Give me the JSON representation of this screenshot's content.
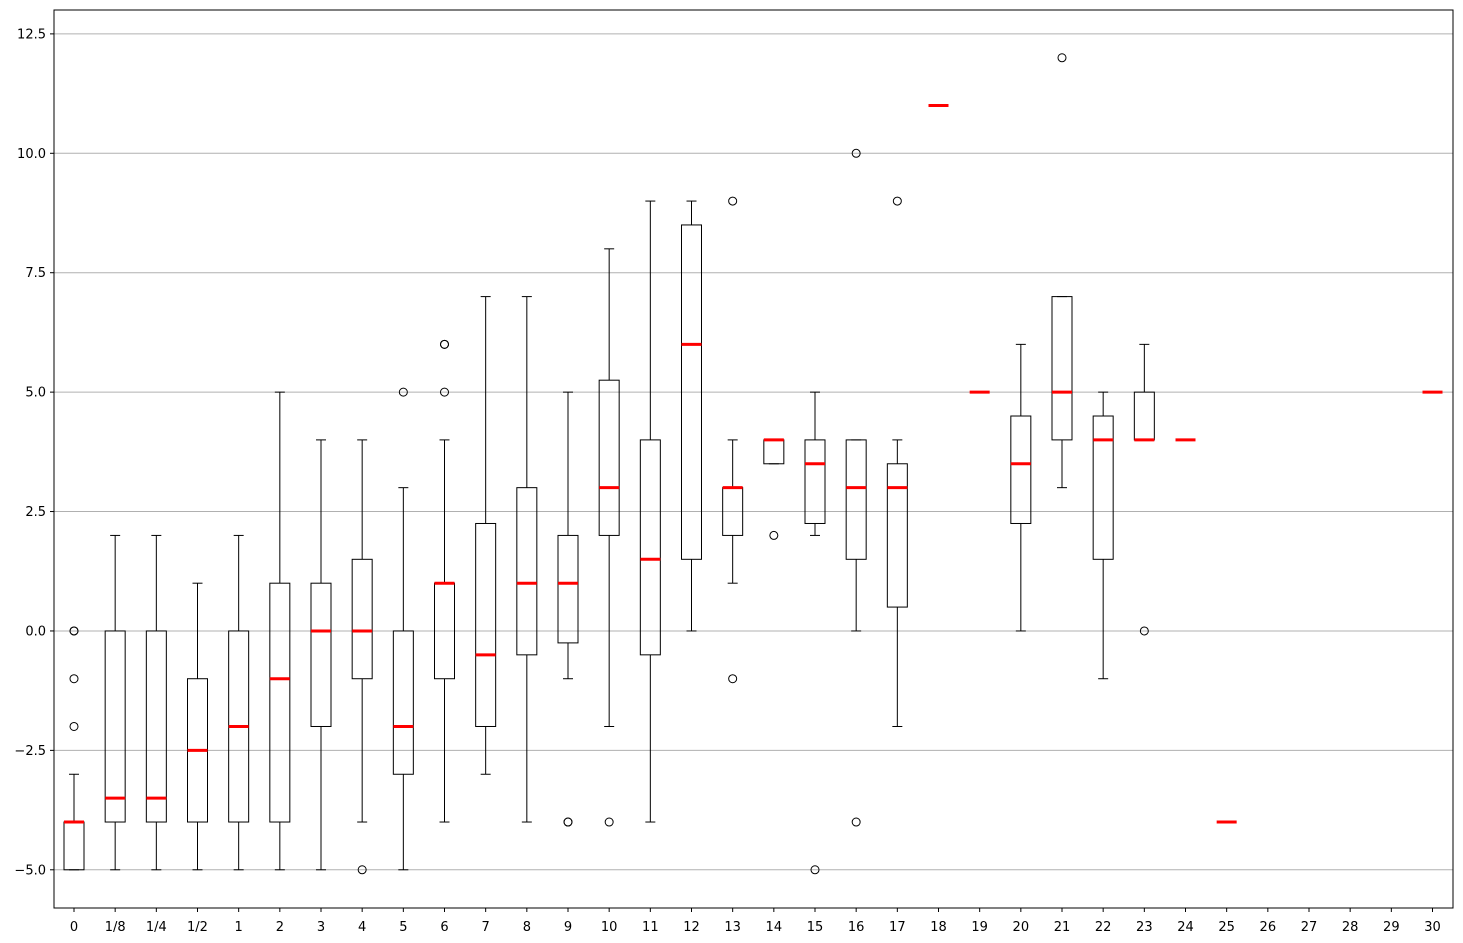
{
  "chart_data": {
    "type": "boxplot",
    "title": "",
    "xlabel": "",
    "ylabel": "",
    "ylim": [
      -5.8,
      13.0
    ],
    "grid": "horizontal",
    "colors": {
      "box": "#000000",
      "median": "#ff0000",
      "grid": "#b0b0b0",
      "flier_fill": "none"
    },
    "categories": [
      "0",
      "1/8",
      "1/4",
      "1/2",
      "1",
      "2",
      "3",
      "4",
      "5",
      "6",
      "7",
      "8",
      "9",
      "10",
      "11",
      "12",
      "13",
      "14",
      "15",
      "16",
      "17",
      "18",
      "19",
      "20",
      "21",
      "22",
      "23",
      "24",
      "25",
      "26",
      "27",
      "28",
      "29",
      "30"
    ],
    "yticks": [
      "-5.0",
      "-2.5",
      "0.0",
      "2.5",
      "5.0",
      "7.5",
      "10.0",
      "12.5"
    ],
    "ytick_values": [
      -5,
      -2.5,
      0,
      2.5,
      5,
      7.5,
      10,
      12.5
    ],
    "boxes": [
      {
        "label": "0",
        "whislo": -5,
        "q1": -5,
        "med": -4,
        "q3": -4,
        "whishi": -3,
        "fliers": [
          0,
          0,
          -1,
          -2
        ]
      },
      {
        "label": "1/8",
        "whislo": -5,
        "q1": -4,
        "med": -3.5,
        "q3": 0,
        "whishi": 2,
        "fliers": []
      },
      {
        "label": "1/4",
        "whislo": -5,
        "q1": -4,
        "med": -3.5,
        "q3": 0,
        "whishi": 2,
        "fliers": []
      },
      {
        "label": "1/2",
        "whislo": -5,
        "q1": -4,
        "med": -2.5,
        "q3": -1,
        "whishi": 1,
        "fliers": []
      },
      {
        "label": "1",
        "whislo": -5,
        "q1": -4,
        "med": -2,
        "q3": 0,
        "whishi": 2,
        "fliers": []
      },
      {
        "label": "2",
        "whislo": -5,
        "q1": -4,
        "med": -1,
        "q3": 1,
        "whishi": 5,
        "fliers": []
      },
      {
        "label": "3",
        "whislo": -5,
        "q1": -2,
        "med": 0,
        "q3": 1,
        "whishi": 4,
        "fliers": []
      },
      {
        "label": "4",
        "whislo": -4,
        "q1": -1,
        "med": 0,
        "q3": 1.5,
        "whishi": 4,
        "fliers": [
          -5
        ]
      },
      {
        "label": "5",
        "whislo": -5,
        "q1": -3,
        "med": -2,
        "q3": 0,
        "whishi": 3,
        "fliers": [
          5
        ]
      },
      {
        "label": "6",
        "whislo": -4,
        "q1": -1,
        "med": 1,
        "q3": 1,
        "whishi": 4,
        "fliers": [
          5,
          6,
          6
        ]
      },
      {
        "label": "7",
        "whislo": -3,
        "q1": -2,
        "med": -0.5,
        "q3": 2.25,
        "whishi": 7,
        "fliers": []
      },
      {
        "label": "8",
        "whislo": -4,
        "q1": -0.5,
        "med": 1,
        "q3": 3,
        "whishi": 7,
        "fliers": []
      },
      {
        "label": "9",
        "whislo": -1,
        "q1": -0.25,
        "med": 1,
        "q3": 2,
        "whishi": 5,
        "fliers": [
          -4,
          -4
        ]
      },
      {
        "label": "10",
        "whislo": -2,
        "q1": 2,
        "med": 3,
        "q3": 5.25,
        "whishi": 8,
        "fliers": [
          -4
        ]
      },
      {
        "label": "11",
        "whislo": -4,
        "q1": -0.5,
        "med": 1.5,
        "q3": 4,
        "whishi": 9,
        "fliers": []
      },
      {
        "label": "12",
        "whislo": 0,
        "q1": 1.5,
        "med": 6,
        "q3": 8.5,
        "whishi": 9,
        "fliers": []
      },
      {
        "label": "13",
        "whislo": 1,
        "q1": 2,
        "med": 3,
        "q3": 3,
        "whishi": 4,
        "fliers": [
          9,
          -1
        ]
      },
      {
        "label": "14",
        "whislo": 3.5,
        "q1": 3.5,
        "med": 4,
        "q3": 4,
        "whishi": 4,
        "fliers": [
          2
        ]
      },
      {
        "label": "15",
        "whislo": 2,
        "q1": 2.25,
        "med": 3.5,
        "q3": 4,
        "whishi": 5,
        "fliers": [
          -5
        ]
      },
      {
        "label": "16",
        "whislo": 0,
        "q1": 1.5,
        "med": 3,
        "q3": 4,
        "whishi": 4,
        "fliers": [
          10,
          -4
        ]
      },
      {
        "label": "17",
        "whislo": -2,
        "q1": 0.5,
        "med": 3,
        "q3": 3.5,
        "whishi": 4,
        "fliers": [
          9
        ]
      },
      {
        "label": "18",
        "whislo": 11,
        "q1": 11,
        "med": 11,
        "q3": 11,
        "whishi": 11,
        "fliers": []
      },
      {
        "label": "19",
        "whislo": 5,
        "q1": 5,
        "med": 5,
        "q3": 5,
        "whishi": 5,
        "fliers": []
      },
      {
        "label": "20",
        "whislo": 0,
        "q1": 2.25,
        "med": 3.5,
        "q3": 4.5,
        "whishi": 6,
        "fliers": []
      },
      {
        "label": "21",
        "whislo": 3,
        "q1": 4,
        "med": 5,
        "q3": 7,
        "whishi": 7,
        "fliers": [
          12
        ]
      },
      {
        "label": "22",
        "whislo": -1,
        "q1": 1.5,
        "med": 4,
        "q3": 4.5,
        "whishi": 5,
        "fliers": []
      },
      {
        "label": "23",
        "whislo": 4,
        "q1": 4,
        "med": 4,
        "q3": 5,
        "whishi": 6,
        "fliers": [
          0
        ]
      },
      {
        "label": "24",
        "whislo": 4,
        "q1": 4,
        "med": 4,
        "q3": 4,
        "whishi": 4,
        "fliers": []
      },
      {
        "label": "25",
        "whislo": -4,
        "q1": -4,
        "med": -4,
        "q3": -4,
        "whishi": -4,
        "fliers": []
      },
      {
        "label": "26",
        "empty": true
      },
      {
        "label": "27",
        "empty": true
      },
      {
        "label": "28",
        "empty": true
      },
      {
        "label": "29",
        "empty": true
      },
      {
        "label": "30",
        "whislo": 5,
        "q1": 5,
        "med": 5,
        "q3": 5,
        "whishi": 5,
        "fliers": []
      }
    ]
  }
}
